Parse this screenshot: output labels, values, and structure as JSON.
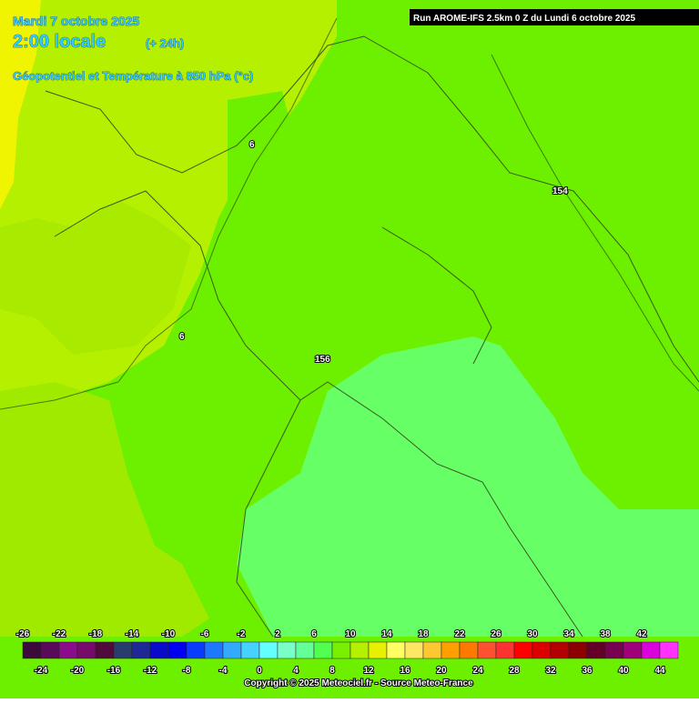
{
  "header": {
    "date": "Mardi 7 octobre 2025",
    "time": "2:00 locale",
    "lead": "(+ 24h)",
    "field": "Géopotentiel et Température à 850 hPa (°c)",
    "run": "Run AROME-IFS 2.5km 0 Z du Lundi 6 octobre 2025"
  },
  "contour_labels": [
    "6",
    "6",
    "154",
    "156"
  ],
  "legend": {
    "ticks": [
      -26,
      -24,
      -22,
      -20,
      -18,
      -16,
      -14,
      -12,
      -10,
      -8,
      -6,
      -4,
      -2,
      0,
      2,
      4,
      6,
      8,
      10,
      12,
      14,
      16,
      18,
      20,
      22,
      24,
      26,
      28,
      30,
      32,
      34,
      36,
      38,
      40,
      42,
      44
    ],
    "colors": [
      "#3c0a3c",
      "#5a0a5a",
      "#8c0a8c",
      "#780a6e",
      "#500a3c",
      "#283c6e",
      "#1e2896",
      "#0a0ac8",
      "#0000f0",
      "#0a3cff",
      "#1e78ff",
      "#32aaff",
      "#46d2ff",
      "#64ffff",
      "#78ffc8",
      "#64ff96",
      "#50ff50",
      "#78f000",
      "#b4f000",
      "#e6f000",
      "#ffff64",
      "#ffe664",
      "#ffc832",
      "#ffa000",
      "#ff7800",
      "#ff5032",
      "#ff3232",
      "#ff0000",
      "#dc0000",
      "#b40000",
      "#8c0000",
      "#640028",
      "#780050",
      "#a0007a",
      "#dc00dc",
      "#ff32ff"
    ]
  },
  "footer": {
    "copyright": "Copyright © 2025 Meteociel.fr - Source Meteo-France"
  }
}
